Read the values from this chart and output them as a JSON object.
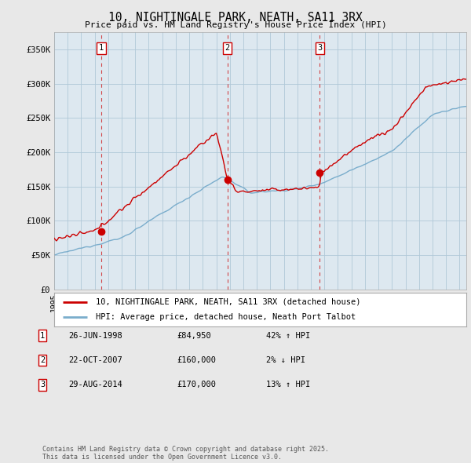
{
  "title": "10, NIGHTINGALE PARK, NEATH, SA11 3RX",
  "subtitle": "Price paid vs. HM Land Registry's House Price Index (HPI)",
  "ylabel_ticks": [
    "£0",
    "£50K",
    "£100K",
    "£150K",
    "£200K",
    "£250K",
    "£300K",
    "£350K"
  ],
  "ytick_values": [
    0,
    50000,
    100000,
    150000,
    200000,
    250000,
    300000,
    350000
  ],
  "ylim": [
    0,
    375000
  ],
  "xlim_start": 1995.0,
  "xlim_end": 2025.5,
  "sale_dates": [
    1998.48,
    2007.81,
    2014.66
  ],
  "sale_prices": [
    84950,
    160000,
    170000
  ],
  "sale_labels": [
    "1",
    "2",
    "3"
  ],
  "red_line_color": "#cc0000",
  "blue_line_color": "#7aadcc",
  "dashed_line_color": "#cc0000",
  "legend_label_red": "10, NIGHTINGALE PARK, NEATH, SA11 3RX (detached house)",
  "legend_label_blue": "HPI: Average price, detached house, Neath Port Talbot",
  "transaction_rows": [
    {
      "label": "1",
      "date": "26-JUN-1998",
      "price": "£84,950",
      "hpi": "42% ↑ HPI"
    },
    {
      "label": "2",
      "date": "22-OCT-2007",
      "price": "£160,000",
      "hpi": "2% ↓ HPI"
    },
    {
      "label": "3",
      "date": "29-AUG-2014",
      "price": "£170,000",
      "hpi": "13% ↑ HPI"
    }
  ],
  "footer": "Contains HM Land Registry data © Crown copyright and database right 2025.\nThis data is licensed under the Open Government Licence v3.0.",
  "background_color": "#e8e8e8",
  "plot_background": "#dde8f0",
  "grid_color": "#b0c8d8",
  "legend_background": "#ffffff"
}
